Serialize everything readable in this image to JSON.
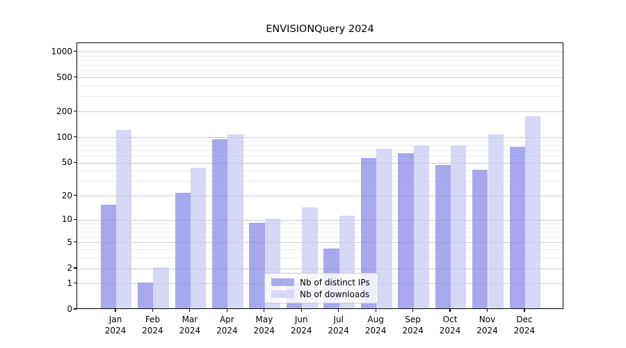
{
  "chart_data": {
    "type": "bar",
    "title": "ENVISIONQuery 2024",
    "categories": [
      "Jan",
      "Feb",
      "Mar",
      "Apr",
      "May",
      "Jun",
      "Jul",
      "Aug",
      "Sep",
      "Oct",
      "Nov",
      "Dec"
    ],
    "year_label": "2024",
    "series": [
      {
        "name": "Nb of distinct IPs",
        "color": "#aaaaee",
        "bar_rgba": "rgba(134,134,232,0.72)",
        "values": [
          15,
          1,
          21,
          92,
          9,
          1,
          4,
          55,
          63,
          46,
          40,
          75
        ]
      },
      {
        "name": "Nb of downloads",
        "color": "#d8d8f6",
        "bar_rgba": "rgba(200,200,242,0.72)",
        "values": [
          118,
          2,
          42,
          105,
          10,
          14,
          11,
          70,
          78,
          78,
          105,
          172
        ]
      }
    ],
    "y_axis": {
      "scale": "log1p",
      "ticks": [
        0,
        1,
        2,
        5,
        10,
        20,
        50,
        100,
        200,
        500,
        1000
      ],
      "minor_ticks": [
        3,
        4,
        6,
        7,
        8,
        9,
        30,
        40,
        60,
        70,
        80,
        90,
        300,
        400,
        600,
        700,
        800,
        900
      ],
      "ylim": [
        0,
        1270
      ]
    },
    "grid": true,
    "legend_position": "lower center"
  }
}
